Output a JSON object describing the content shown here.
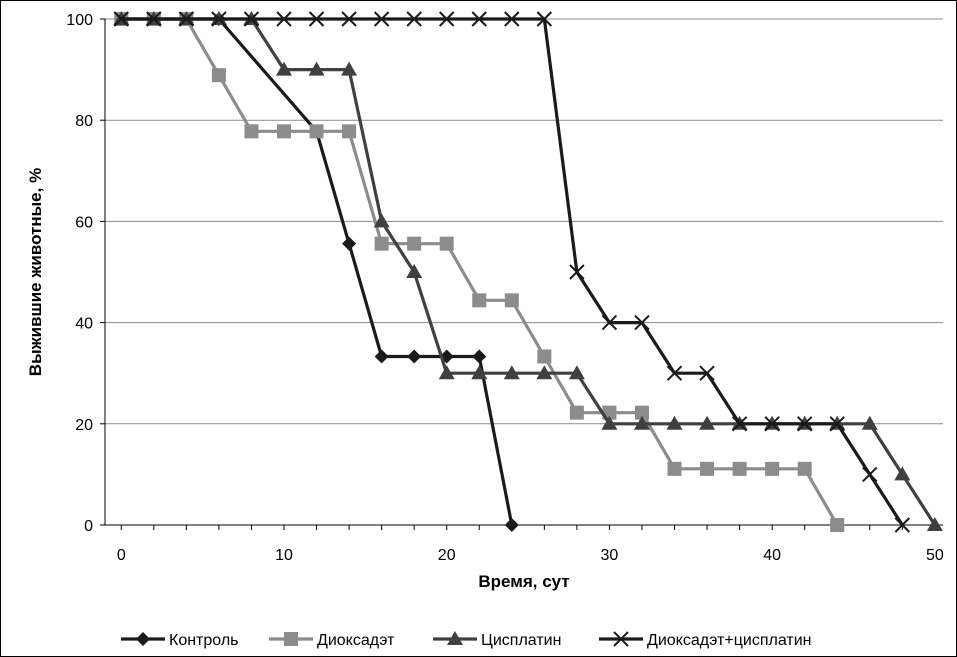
{
  "chart_data": {
    "type": "line",
    "title": "",
    "xlabel": "Время, сут",
    "ylabel": "Выжившие животные, %",
    "xlim": [
      -1,
      50.5
    ],
    "ylim": [
      0,
      100
    ],
    "xticks": [
      0,
      10,
      20,
      30,
      40,
      50
    ],
    "yticks": [
      0,
      20,
      40,
      60,
      80,
      100
    ],
    "grid": "horizontal",
    "legend_position": "bottom",
    "series": [
      {
        "name": "Контроль",
        "color": "#1a1a1a",
        "marker": "diamond",
        "x": [
          0,
          2,
          4,
          6,
          12,
          14,
          16,
          18,
          20,
          22,
          24
        ],
        "y": [
          100,
          100,
          100,
          100,
          77.8,
          55.6,
          33.3,
          33.3,
          33.3,
          33.3,
          0
        ]
      },
      {
        "name": "Диоксадэт",
        "color": "#8c8c8c",
        "marker": "square",
        "x": [
          0,
          2,
          4,
          6,
          8,
          10,
          12,
          14,
          16,
          18,
          20,
          22,
          24,
          26,
          28,
          30,
          32,
          34,
          36,
          38,
          40,
          42,
          44
        ],
        "y": [
          100,
          100,
          100,
          88.9,
          77.8,
          77.8,
          77.8,
          77.8,
          55.6,
          55.6,
          55.6,
          44.4,
          44.4,
          33.3,
          22.2,
          22.2,
          22.2,
          11.1,
          11.1,
          11.1,
          11.1,
          11.1,
          0
        ]
      },
      {
        "name": "Цисплатин",
        "color": "#404040",
        "marker": "triangle",
        "x": [
          0,
          2,
          4,
          6,
          8,
          10,
          12,
          14,
          16,
          18,
          20,
          22,
          24,
          26,
          28,
          30,
          32,
          34,
          36,
          38,
          40,
          42,
          44,
          46,
          48,
          50
        ],
        "y": [
          100,
          100,
          100,
          100,
          100,
          90,
          90,
          90,
          60,
          50,
          30,
          30,
          30,
          30,
          30,
          20,
          20,
          20,
          20,
          20,
          20,
          20,
          20,
          20,
          10,
          0
        ]
      },
      {
        "name": "Диоксадэт+цисплатин",
        "color": "#1a1a1a",
        "marker": "x",
        "x": [
          0,
          2,
          4,
          6,
          8,
          10,
          12,
          14,
          16,
          18,
          20,
          22,
          24,
          26,
          28,
          30,
          32,
          34,
          36,
          38,
          40,
          42,
          44,
          46,
          48
        ],
        "y": [
          100,
          100,
          100,
          100,
          100,
          100,
          100,
          100,
          100,
          100,
          100,
          100,
          100,
          100,
          50,
          40,
          40,
          30,
          30,
          20,
          20,
          20,
          20,
          10,
          0
        ]
      }
    ]
  }
}
